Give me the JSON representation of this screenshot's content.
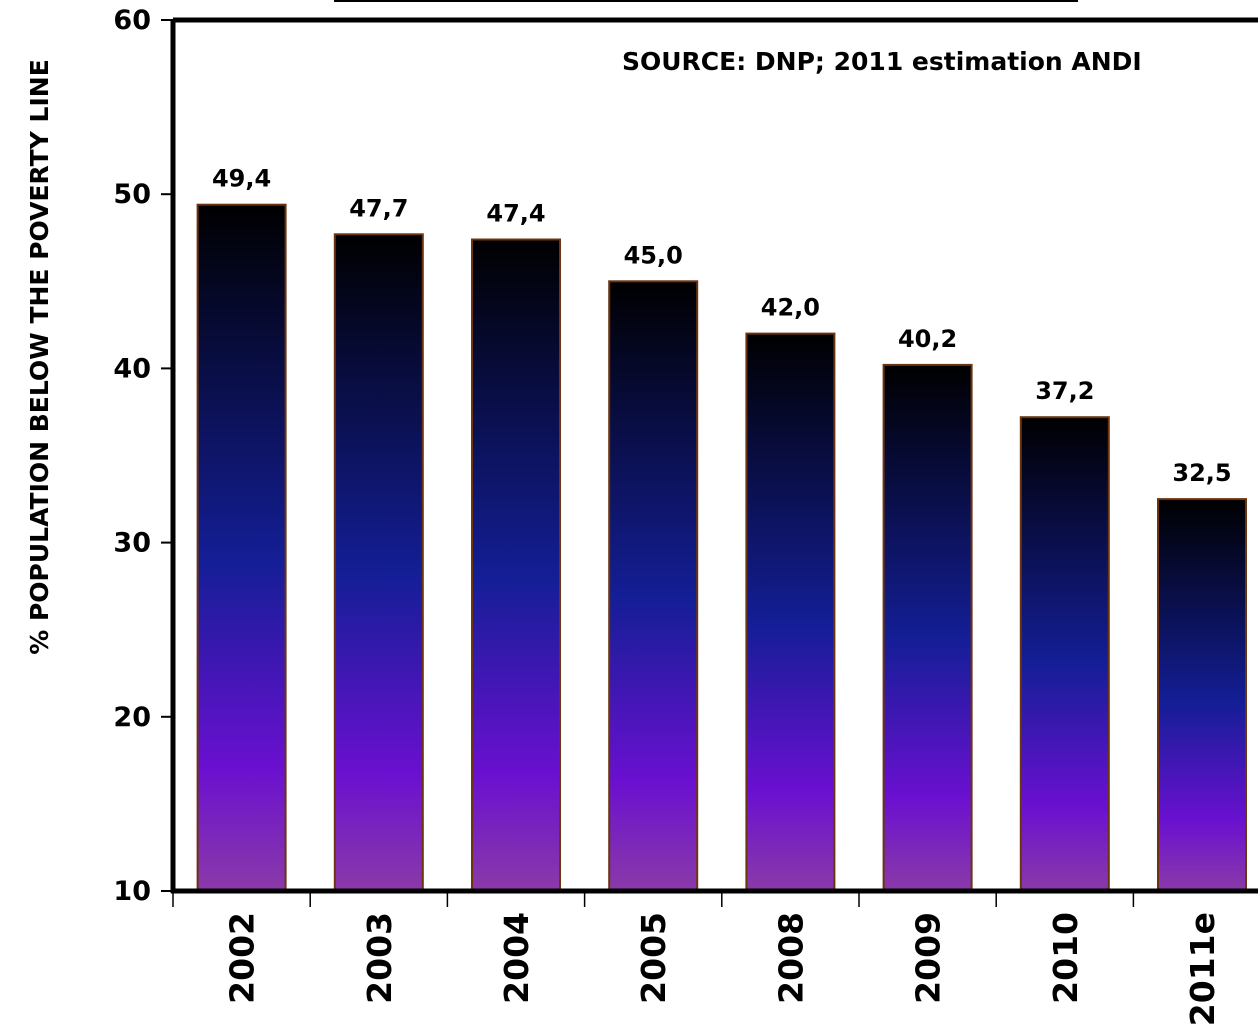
{
  "chart_data": {
    "type": "bar",
    "categories": [
      "2002",
      "2003",
      "2004",
      "2005",
      "2008",
      "2009",
      "2010",
      "2011e"
    ],
    "values": [
      49.4,
      47.7,
      47.4,
      45.0,
      42.0,
      40.2,
      37.2,
      32.5
    ],
    "value_labels": [
      "49,4",
      "47,7",
      "47,4",
      "45,0",
      "42,0",
      "40,2",
      "37,2",
      "32,5"
    ],
    "title": "",
    "xlabel": "",
    "ylabel": "% POPULATION BELOW THE POVERTY LINE",
    "ylim": [
      10,
      60
    ],
    "yticks": [
      10,
      20,
      30,
      40,
      50,
      60
    ],
    "ytick_labels": [
      "10",
      "20",
      "30",
      "40",
      "50",
      "60"
    ],
    "annotation": "SOURCE: DNP; 2011 estimation ANDI",
    "grid": false,
    "legend": "none",
    "colors": {
      "bar_top": "#000000",
      "bar_mid": "#141e96",
      "bar_low": "#6a10d0",
      "bar_bottom": "#8a3aa8",
      "bar_border": "#6b3410",
      "axis": "#000000"
    }
  }
}
